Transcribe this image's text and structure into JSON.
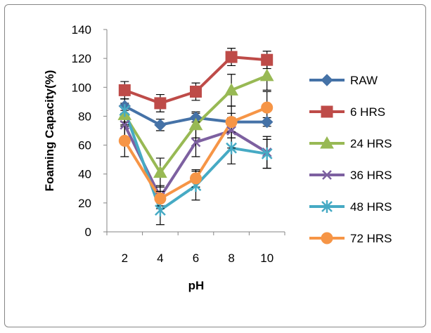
{
  "chart_data": {
    "type": "line",
    "title": "",
    "xlabel": "pH",
    "ylabel": "Foaming Capacity(%)",
    "categories": [
      "2",
      "4",
      "6",
      "8",
      "10"
    ],
    "y_ticks": [
      "0",
      "20",
      "40",
      "60",
      "80",
      "100",
      "120",
      "140"
    ],
    "ylim": [
      0,
      140
    ],
    "grid": false,
    "legend_position": "right",
    "error_bars": true,
    "series": [
      {
        "name": "RAW",
        "color": "#4572A7",
        "marker": "diamond",
        "values": [
          87,
          74,
          79,
          76,
          76
        ],
        "errors": [
          5,
          4,
          3,
          3,
          3
        ]
      },
      {
        "name": "6 HRS",
        "color": "#BE4B48",
        "marker": "square",
        "values": [
          98,
          89,
          97,
          121,
          119
        ],
        "errors": [
          6,
          6,
          6,
          6,
          6
        ]
      },
      {
        "name": "24 HRS",
        "color": "#98B954",
        "marker": "triangle",
        "values": [
          81,
          41,
          74,
          98,
          108
        ],
        "errors": [
          8,
          10,
          9,
          11,
          10
        ]
      },
      {
        "name": "36 HRS",
        "color": "#7D60A0",
        "marker": "x",
        "values": [
          74,
          24,
          62,
          70,
          55
        ],
        "errors": [
          10,
          8,
          10,
          12,
          11
        ]
      },
      {
        "name": "48 HRS",
        "color": "#46AAC4",
        "marker": "star",
        "values": [
          84,
          15,
          32,
          58,
          54
        ],
        "errors": [
          8,
          10,
          10,
          11,
          10
        ]
      },
      {
        "name": "72 HRS",
        "color": "#F69546",
        "marker": "circle",
        "values": [
          63,
          23,
          37,
          76,
          86
        ],
        "errors": [
          11,
          5,
          6,
          11,
          11
        ]
      }
    ]
  }
}
